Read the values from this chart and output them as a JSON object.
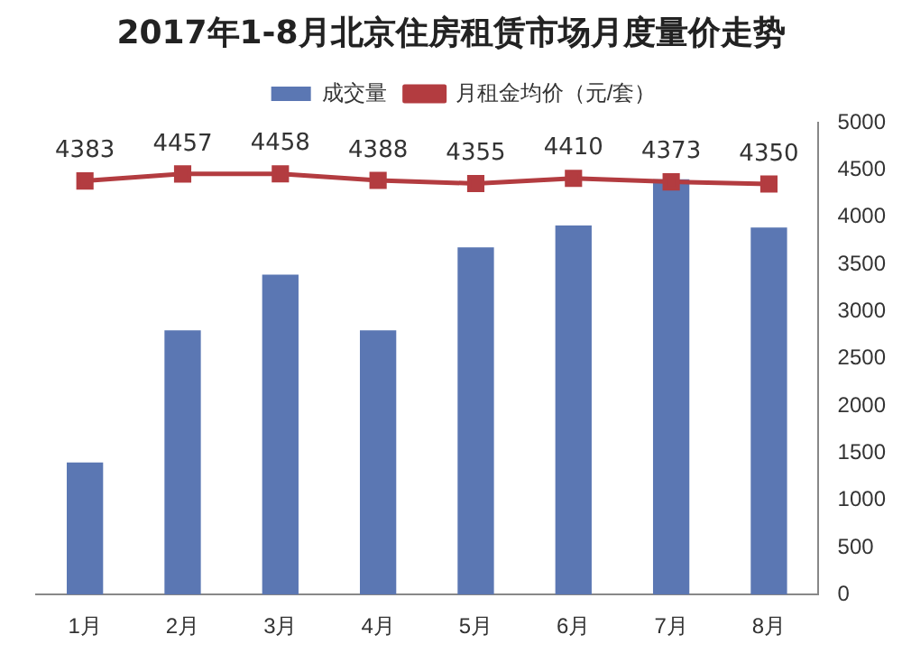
{
  "chart_data": {
    "type": "bar",
    "title": "2017年1-8月北京住房租赁市场月度量价走势",
    "categories": [
      "1月",
      "2月",
      "3月",
      "4月",
      "5月",
      "6月",
      "7月",
      "8月"
    ],
    "legend": "top",
    "grid": false,
    "marker": "square",
    "y2lim": [
      0,
      5000
    ],
    "y2ticks": [
      0,
      500,
      1000,
      1500,
      2000,
      2500,
      3000,
      3500,
      4000,
      4500,
      5000
    ],
    "series": [
      {
        "name": "成交量",
        "axis": "y2",
        "color": "#5b77b3",
        "values": [
          1400,
          2800,
          3390,
          2800,
          3680,
          3910,
          4400,
          3890
        ]
      },
      {
        "name": "月租金均价（元/套）",
        "type": "line",
        "axis": "y2",
        "color": "#b33c40",
        "values": [
          4383,
          4457,
          4458,
          4388,
          4355,
          4410,
          4373,
          4350
        ],
        "value_labels": [
          "4383",
          "4457",
          "4458",
          "4388",
          "4355",
          "4410",
          "4373",
          "4350"
        ]
      }
    ]
  }
}
